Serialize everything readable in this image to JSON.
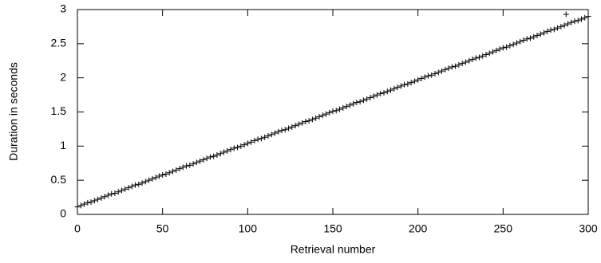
{
  "chart_data": {
    "type": "scatter",
    "xlabel": "Retrieval number",
    "ylabel": "Duration in seconds",
    "xlim": [
      0,
      300
    ],
    "xticks": [
      0,
      50,
      100,
      150,
      200,
      250,
      300
    ],
    "ylim": [
      0,
      3
    ],
    "yticks": [
      0,
      0.5,
      1,
      1.5,
      2,
      2.5,
      3
    ],
    "color": "#000000",
    "marker": "+",
    "x": [
      0,
      2,
      4,
      6,
      8,
      10,
      12,
      14,
      16,
      18,
      20,
      22,
      24,
      26,
      28,
      30,
      32,
      34,
      36,
      38,
      40,
      42,
      44,
      46,
      48,
      50,
      52,
      54,
      56,
      58,
      60,
      62,
      64,
      66,
      68,
      70,
      72,
      74,
      76,
      78,
      80,
      82,
      84,
      86,
      88,
      90,
      92,
      94,
      96,
      98,
      100,
      102,
      104,
      106,
      108,
      110,
      112,
      114,
      116,
      118,
      120,
      122,
      124,
      126,
      128,
      130,
      132,
      134,
      136,
      138,
      140,
      142,
      144,
      146,
      148,
      150,
      152,
      154,
      156,
      158,
      160,
      162,
      164,
      166,
      168,
      170,
      172,
      174,
      176,
      178,
      180,
      182,
      184,
      186,
      188,
      190,
      192,
      194,
      196,
      198,
      200,
      202,
      204,
      206,
      208,
      210,
      212,
      214,
      216,
      218,
      220,
      222,
      224,
      226,
      228,
      230,
      232,
      234,
      236,
      238,
      240,
      242,
      244,
      246,
      248,
      250,
      252,
      254,
      256,
      258,
      260,
      262,
      264,
      266,
      268,
      270,
      272,
      274,
      276,
      278,
      280,
      282,
      284,
      286,
      288,
      290,
      292,
      294,
      296,
      298,
      300,
      287
    ],
    "values": [
      0.11,
      0.13,
      0.15,
      0.17,
      0.18,
      0.2,
      0.22,
      0.24,
      0.26,
      0.28,
      0.3,
      0.31,
      0.33,
      0.35,
      0.37,
      0.39,
      0.41,
      0.43,
      0.44,
      0.46,
      0.48,
      0.5,
      0.52,
      0.54,
      0.56,
      0.58,
      0.59,
      0.61,
      0.63,
      0.65,
      0.67,
      0.69,
      0.71,
      0.72,
      0.74,
      0.76,
      0.78,
      0.8,
      0.82,
      0.84,
      0.85,
      0.87,
      0.89,
      0.91,
      0.93,
      0.95,
      0.97,
      0.98,
      1.0,
      1.02,
      1.04,
      1.06,
      1.08,
      1.1,
      1.11,
      1.13,
      1.15,
      1.17,
      1.19,
      1.21,
      1.23,
      1.24,
      1.26,
      1.28,
      1.3,
      1.32,
      1.34,
      1.36,
      1.37,
      1.39,
      1.41,
      1.43,
      1.45,
      1.47,
      1.49,
      1.51,
      1.52,
      1.54,
      1.56,
      1.58,
      1.6,
      1.62,
      1.64,
      1.65,
      1.67,
      1.69,
      1.71,
      1.73,
      1.75,
      1.77,
      1.78,
      1.8,
      1.82,
      1.84,
      1.86,
      1.88,
      1.9,
      1.91,
      1.93,
      1.95,
      1.97,
      1.99,
      2.01,
      2.03,
      2.04,
      2.06,
      2.08,
      2.1,
      2.12,
      2.14,
      2.16,
      2.17,
      2.19,
      2.21,
      2.23,
      2.25,
      2.27,
      2.29,
      2.3,
      2.32,
      2.34,
      2.36,
      2.38,
      2.4,
      2.42,
      2.44,
      2.45,
      2.47,
      2.49,
      2.51,
      2.53,
      2.55,
      2.57,
      2.58,
      2.6,
      2.62,
      2.64,
      2.66,
      2.68,
      2.7,
      2.71,
      2.73,
      2.75,
      2.77,
      2.79,
      2.81,
      2.83,
      2.84,
      2.86,
      2.88,
      2.9,
      2.93
    ]
  }
}
